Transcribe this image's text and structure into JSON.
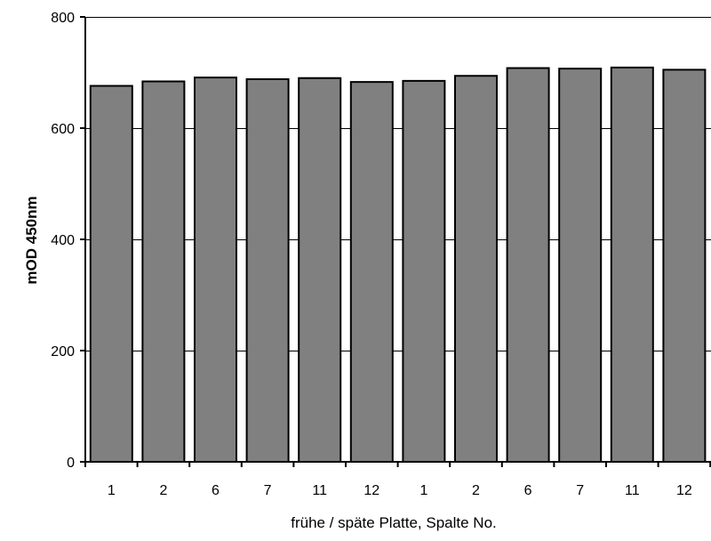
{
  "chart_data": {
    "type": "bar",
    "title": "",
    "xlabel": "frühe / späte Platte, Spalte No.",
    "ylabel": "mOD 450nm",
    "categories": [
      "1",
      "2",
      "6",
      "7",
      "11",
      "12",
      "1",
      "2",
      "6",
      "7",
      "11",
      "12"
    ],
    "values": [
      676,
      684,
      691,
      688,
      690,
      683,
      685,
      694,
      708,
      707,
      709,
      705
    ],
    "ylim": [
      0,
      800
    ],
    "yticks": [
      0,
      200,
      400,
      600,
      800
    ],
    "grid": true,
    "legend": "none",
    "colors": {
      "bar_fill": "#808080",
      "bar_stroke": "#000000",
      "grid": "#000000",
      "background": "#ffffff"
    }
  }
}
